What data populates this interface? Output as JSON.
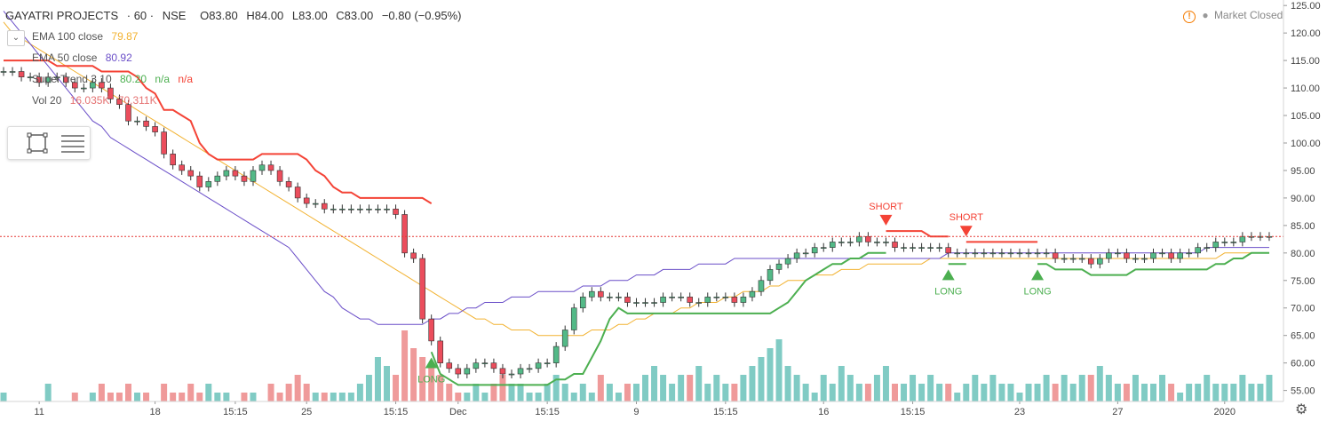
{
  "header": {
    "title": "GAYATRI PROJECTS",
    "interval": "· 60 ·",
    "exchange": "NSE",
    "open": "O83.80",
    "high": "H84.00",
    "low": "L83.00",
    "close": "C83.00",
    "change": "−0.80 (−0.95%)"
  },
  "indicators": {
    "ema100": {
      "label": "EMA 100 close",
      "value": "79.87",
      "color": "#f2b231"
    },
    "ema50": {
      "label": "EMA 50 close",
      "value": "80.92",
      "color": "#6a4ec8"
    },
    "supertrend": {
      "label": "SuperTrend 3 10",
      "value": "80.20",
      "na1": "n/a",
      "na2": "n/a",
      "up_color": "#4caf50",
      "down_color": "#f44336"
    },
    "volume": {
      "label": "Vol 20",
      "value1": "16.035K",
      "value2": "70.311K"
    }
  },
  "market_status": {
    "icon": "!",
    "dot": "●",
    "text": "Market Closed"
  },
  "current_price_label": "83.00",
  "settings_icon": "⚙",
  "collapse_icon": "⌄",
  "chart_data": {
    "type": "candlestick",
    "price_axis": {
      "ticks": [
        "125.00",
        "120.00",
        "115.00",
        "110.00",
        "105.00",
        "100.00",
        "95.00",
        "90.00",
        "85.00",
        "80.00",
        "75.00",
        "70.00",
        "65.00",
        "60.00",
        "55.00"
      ],
      "range": [
        53,
        126
      ]
    },
    "time_axis": {
      "labels": [
        "11",
        "18",
        "15:15",
        "25",
        "15:15",
        "Dec",
        "15:15",
        "9",
        "15:15",
        "16",
        "15:15",
        "23",
        "27",
        "2020"
      ],
      "x": [
        4,
        17,
        26,
        34,
        44,
        51,
        61,
        71,
        81,
        92,
        102,
        114,
        125,
        137
      ]
    },
    "x_range": [
      0,
      143
    ],
    "closes": [
      113,
      113,
      112,
      112,
      111,
      112,
      112,
      111,
      110,
      110,
      111,
      110,
      108,
      107,
      104,
      104,
      103,
      102,
      98,
      96,
      95,
      94,
      92,
      93,
      94,
      95,
      94,
      93,
      95,
      96,
      95,
      93,
      92,
      90,
      89,
      89,
      88,
      88,
      88,
      88,
      88,
      88,
      88,
      88,
      87,
      80,
      79,
      68,
      64,
      60,
      59,
      58,
      59,
      60,
      60,
      59,
      58,
      58,
      59,
      59,
      60,
      60,
      63,
      66,
      70,
      72,
      73,
      72,
      72,
      72,
      71,
      71,
      71,
      71,
      72,
      72,
      72,
      71,
      71,
      72,
      72,
      72,
      71,
      72,
      73,
      75,
      77,
      78,
      79,
      80,
      80,
      81,
      81,
      82,
      82,
      82,
      83,
      82,
      82,
      82,
      81,
      81,
      81,
      81,
      81,
      81,
      80,
      80,
      80,
      80,
      80,
      80,
      80,
      80,
      80,
      80,
      80,
      80,
      79,
      79,
      79,
      79,
      78,
      79,
      80,
      80,
      79,
      79,
      79,
      80,
      80,
      79,
      80,
      80,
      81,
      81,
      82,
      82,
      82,
      83,
      83,
      83,
      83
    ],
    "ema100": [
      122,
      120,
      119,
      118,
      117,
      116,
      115,
      114,
      113,
      112,
      111,
      110,
      109,
      108,
      107,
      106,
      105,
      104,
      103,
      102,
      101,
      100,
      99,
      98,
      97,
      96,
      95,
      94,
      93,
      92,
      91,
      90,
      89,
      88,
      87,
      86,
      85,
      84,
      83,
      82,
      81,
      80,
      79,
      78,
      77,
      76,
      75,
      74,
      73,
      72,
      71,
      70,
      69,
      68,
      68,
      67,
      67,
      66,
      66,
      66,
      65,
      65,
      65,
      65,
      65,
      65,
      66,
      66,
      66,
      67,
      67,
      68,
      68,
      69,
      69,
      69,
      70,
      70,
      71,
      71,
      71,
      72,
      72,
      73,
      73,
      73,
      74,
      74,
      75,
      75,
      75,
      76,
      76,
      76,
      77,
      77,
      77,
      78,
      78,
      78,
      78,
      78,
      78,
      78,
      79,
      79,
      79,
      79,
      79,
      79,
      79,
      79,
      79,
      79,
      79,
      79,
      79,
      79,
      79,
      79,
      79,
      79,
      79,
      79,
      79,
      79,
      79,
      79,
      79,
      79,
      79,
      79,
      79,
      79,
      79,
      79,
      79,
      80,
      80,
      80,
      80,
      80,
      80
    ],
    "ema50": [
      124,
      122,
      120,
      118,
      116,
      114,
      112,
      110,
      108,
      106,
      104,
      103,
      101,
      100,
      99,
      98,
      97,
      96,
      95,
      94,
      93,
      92,
      91,
      90,
      89,
      88,
      87,
      86,
      85,
      84,
      83,
      82,
      81,
      79,
      77,
      75,
      73,
      72,
      70,
      69,
      68,
      68,
      67,
      67,
      67,
      67,
      67,
      67,
      68,
      68,
      69,
      69,
      70,
      70,
      71,
      71,
      71,
      72,
      72,
      72,
      73,
      73,
      73,
      73,
      73,
      74,
      74,
      74,
      75,
      75,
      75,
      76,
      76,
      76,
      77,
      77,
      77,
      77,
      78,
      78,
      78,
      78,
      79,
      79,
      79,
      79,
      79,
      79,
      79,
      79,
      79,
      79,
      79,
      79,
      79,
      79,
      79,
      79,
      79,
      79,
      79,
      79,
      79,
      79,
      79,
      79,
      80,
      80,
      80,
      80,
      80,
      80,
      80,
      80,
      80,
      80,
      80,
      80,
      80,
      80,
      80,
      80,
      80,
      80,
      80,
      80,
      80,
      80,
      80,
      80,
      80,
      80,
      80,
      80,
      80,
      81,
      81,
      81,
      81,
      81,
      81,
      81,
      81
    ],
    "supertrend_segments": [
      {
        "dir": "down",
        "from": 0,
        "to": 48
      },
      {
        "dir": "up",
        "from": 48,
        "to": 99
      },
      {
        "dir": "down",
        "from": 99,
        "to": 106
      },
      {
        "dir": "up",
        "from": 106,
        "to": 108
      },
      {
        "dir": "down",
        "from": 108,
        "to": 116
      },
      {
        "dir": "up",
        "from": 116,
        "to": 143
      }
    ],
    "signals": [
      {
        "type": "LONG",
        "x": 48
      },
      {
        "type": "SHORT",
        "x": 99
      },
      {
        "type": "LONG",
        "x": 106
      },
      {
        "type": "SHORT",
        "x": 108
      },
      {
        "type": "LONG",
        "x": 116
      }
    ],
    "volume": [
      1,
      0,
      0,
      0,
      0,
      2,
      0,
      0,
      1,
      0,
      1,
      2,
      1,
      1,
      2,
      1,
      1,
      0,
      2,
      1,
      1,
      2,
      1,
      2,
      1,
      1,
      0,
      1,
      1,
      0,
      2,
      1,
      2,
      3,
      2,
      1,
      1,
      1,
      1,
      1,
      2,
      3,
      5,
      4,
      3,
      8,
      6,
      5,
      4,
      3,
      2,
      1,
      1,
      2,
      1,
      2,
      3,
      2,
      2,
      1,
      1,
      2,
      3,
      2,
      1,
      2,
      1,
      3,
      2,
      1,
      2,
      2,
      3,
      4,
      3,
      2,
      3,
      3,
      4,
      2,
      3,
      2,
      2,
      3,
      4,
      5,
      6,
      7,
      4,
      3,
      2,
      1,
      3,
      2,
      4,
      3,
      2,
      2,
      3,
      4,
      2,
      2,
      3,
      2,
      3,
      2,
      2,
      1,
      2,
      3,
      2,
      3,
      2,
      2,
      1,
      2,
      2,
      3,
      2,
      3,
      2,
      3,
      3,
      4,
      3,
      2,
      2,
      3,
      2,
      2,
      3,
      2,
      1,
      2,
      2,
      3,
      2,
      2,
      2,
      3,
      2,
      2,
      3
    ],
    "current_price": 83.0
  }
}
